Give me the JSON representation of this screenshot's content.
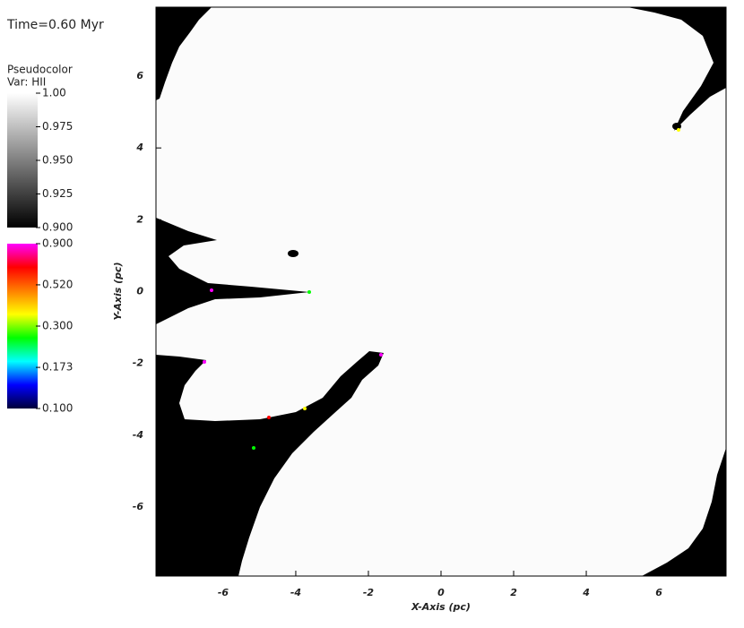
{
  "time_label": "Time=0.60 Myr",
  "chart_data": {
    "type": "pseudocolor",
    "xlabel": "X-Axis (pc)",
    "ylabel": "Y-Axis (pc)",
    "xlim": [
      -7.85,
      7.85
    ],
    "ylim": [
      -7.92,
      7.92
    ],
    "xticks": [
      -6,
      -4,
      -2,
      0,
      2,
      4,
      6
    ],
    "yticks": [
      -6,
      -4,
      -2,
      0,
      2,
      4,
      6
    ],
    "legend": {
      "title": "Pseudocolor",
      "var": "Var: HII",
      "scales": [
        {
          "lim": [
            0.9,
            1.0
          ],
          "log": false,
          "colors": [
            "#000000",
            "#ffffff"
          ],
          "ticks": [
            {
              "value": 1.0,
              "label": "1.00"
            },
            0.975,
            {
              "value": 0.95,
              "label": "0.950"
            },
            0.925,
            {
              "value": 0.9,
              "label": "0.900"
            }
          ]
        },
        {
          "lim": [
            0.1,
            0.9
          ],
          "log": true,
          "colors": [
            "#00003a",
            "#0000ff",
            "#00ffff",
            "#00ff00",
            "#ffff00",
            "#ff7f00",
            "#ff0000",
            "#ff00ff"
          ],
          "ticks": [
            {
              "value": 0.9,
              "label": "0.900"
            },
            {
              "value": 0.52,
              "label": "0.520"
            },
            {
              "value": 0.3,
              "label": "0.300"
            },
            0.173,
            {
              "value": 0.1,
              "label": "0.100"
            }
          ]
        }
      ]
    }
  }
}
